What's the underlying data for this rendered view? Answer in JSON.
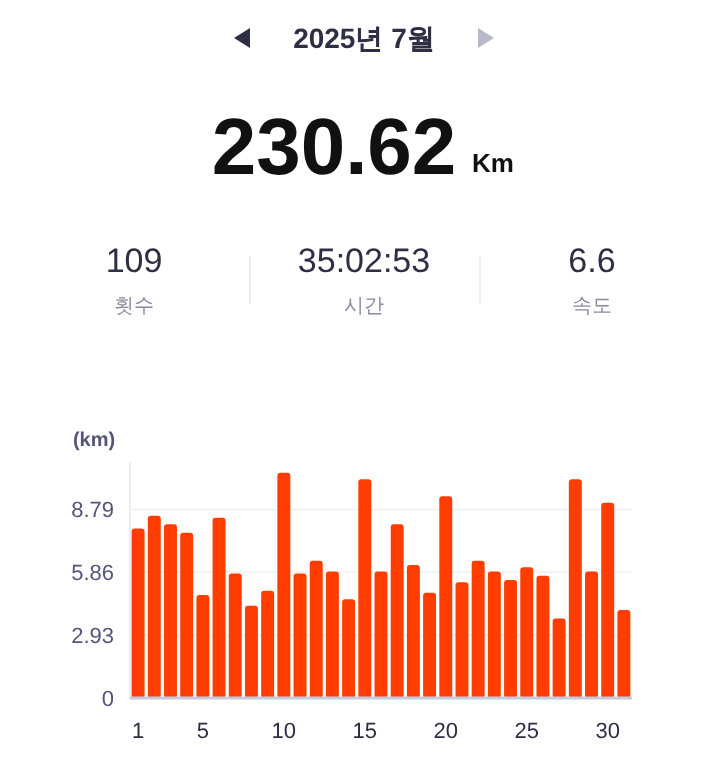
{
  "chart_data": [
    {
      "type": "other",
      "title": "2025년 7월",
      "annotations": [
        "230.62",
        "Km",
        "109",
        "횟수",
        "35:02:53",
        "시간",
        "6.6",
        "속도"
      ]
    },
    {
      "type": "bar",
      "ylabel": "(km)",
      "x": [
        1,
        2,
        3,
        4,
        5,
        6,
        7,
        8,
        9,
        10,
        11,
        12,
        13,
        14,
        15,
        16,
        17,
        18,
        19,
        20,
        21,
        22,
        23,
        24,
        25,
        26,
        27,
        28,
        29,
        30,
        31
      ],
      "xlim": [
        0.5,
        31.5
      ],
      "xticks": [
        1,
        5,
        10,
        15,
        20,
        25,
        30
      ],
      "values": [
        7.9,
        8.5,
        8.1,
        7.7,
        4.8,
        8.4,
        5.8,
        4.3,
        5.0,
        10.5,
        5.8,
        6.4,
        5.9,
        4.6,
        10.2,
        5.9,
        8.1,
        6.2,
        4.9,
        9.4,
        5.4,
        6.4,
        5.9,
        5.5,
        6.1,
        5.7,
        3.7,
        10.2,
        5.9,
        9.1,
        4.1
      ],
      "color": "#ff3d00",
      "ylim": [
        0,
        11
      ],
      "yticks": [
        0,
        2.93,
        5.86,
        8.79
      ],
      "grid": "y"
    }
  ]
}
